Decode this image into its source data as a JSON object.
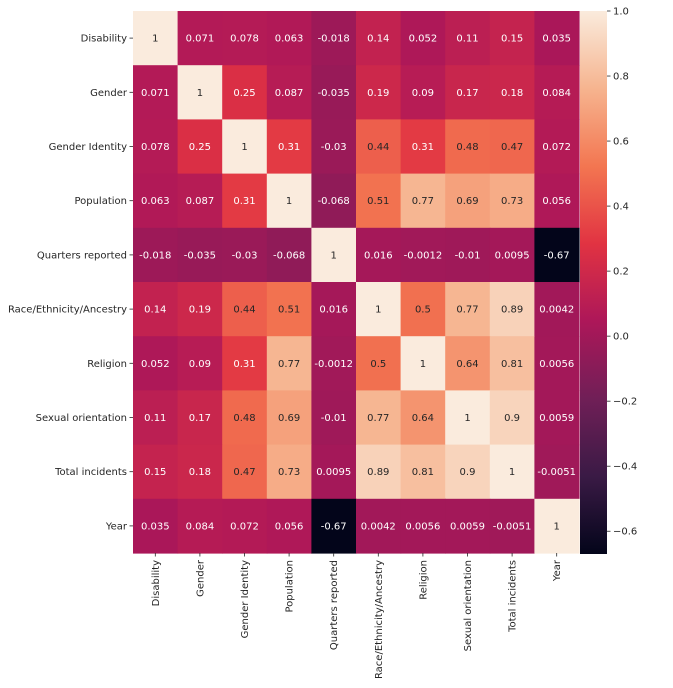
{
  "chart_data": {
    "type": "heatmap",
    "title": "",
    "xlabel": "",
    "ylabel": "",
    "labels": [
      "Disability",
      "Gender",
      "Gender Identity",
      "Population",
      "Quarters reported",
      "Race/Ethnicity/Ancestry",
      "Religion",
      "Sexual orientation",
      "Total incidents",
      "Year"
    ],
    "values": [
      [
        1,
        0.071,
        0.078,
        0.063,
        -0.018,
        0.14,
        0.052,
        0.11,
        0.15,
        0.035
      ],
      [
        0.071,
        1,
        0.25,
        0.087,
        -0.035,
        0.19,
        0.09,
        0.17,
        0.18,
        0.084
      ],
      [
        0.078,
        0.25,
        1,
        0.31,
        -0.03,
        0.44,
        0.31,
        0.48,
        0.47,
        0.072
      ],
      [
        0.063,
        0.087,
        0.31,
        1,
        -0.068,
        0.51,
        0.77,
        0.69,
        0.73,
        0.056
      ],
      [
        -0.018,
        -0.035,
        -0.03,
        -0.068,
        1,
        0.016,
        -0.0012,
        -0.01,
        0.0095,
        -0.67
      ],
      [
        0.14,
        0.19,
        0.44,
        0.51,
        0.016,
        1,
        0.5,
        0.77,
        0.89,
        0.0042
      ],
      [
        0.052,
        0.09,
        0.31,
        0.77,
        -0.0012,
        0.5,
        1,
        0.64,
        0.81,
        0.0056
      ],
      [
        0.11,
        0.17,
        0.48,
        0.69,
        -0.01,
        0.77,
        0.64,
        1,
        0.9,
        0.0059
      ],
      [
        0.15,
        0.18,
        0.47,
        0.73,
        0.0095,
        0.89,
        0.81,
        0.9,
        1,
        -0.0051
      ],
      [
        0.035,
        0.084,
        0.072,
        0.056,
        -0.67,
        0.0042,
        0.0056,
        0.0059,
        -0.0051,
        1
      ]
    ],
    "cell_labels": [
      [
        "1",
        "0.071",
        "0.078",
        "0.063",
        "-0.018",
        "0.14",
        "0.052",
        "0.11",
        "0.15",
        "0.035"
      ],
      [
        "0.071",
        "1",
        "0.25",
        "0.087",
        "-0.035",
        "0.19",
        "0.09",
        "0.17",
        "0.18",
        "0.084"
      ],
      [
        "0.078",
        "0.25",
        "1",
        "0.31",
        "-0.03",
        "0.44",
        "0.31",
        "0.48",
        "0.47",
        "0.072"
      ],
      [
        "0.063",
        "0.087",
        "0.31",
        "1",
        "-0.068",
        "0.51",
        "0.77",
        "0.69",
        "0.73",
        "0.056"
      ],
      [
        "-0.018",
        "-0.035",
        "-0.03",
        "-0.068",
        "1",
        "0.016",
        "-0.0012",
        "-0.01",
        "0.0095",
        "-0.67"
      ],
      [
        "0.14",
        "0.19",
        "0.44",
        "0.51",
        "0.016",
        "1",
        "0.5",
        "0.77",
        "0.89",
        "0.0042"
      ],
      [
        "0.052",
        "0.09",
        "0.31",
        "0.77",
        "-0.0012",
        "0.5",
        "1",
        "0.64",
        "0.81",
        "0.0056"
      ],
      [
        "0.11",
        "0.17",
        "0.48",
        "0.69",
        "-0.01",
        "0.77",
        "0.64",
        "1",
        "0.9",
        "0.0059"
      ],
      [
        "0.15",
        "0.18",
        "0.47",
        "0.73",
        "0.0095",
        "0.89",
        "0.81",
        "0.9",
        "1",
        "-0.0051"
      ],
      [
        "0.035",
        "0.084",
        "0.072",
        "0.056",
        "-0.67",
        "0.0042",
        "0.0056",
        "0.0059",
        "-0.0051",
        "1"
      ]
    ],
    "color_scale": {
      "name": "rocket",
      "vmin": -0.67,
      "vmax": 1,
      "stops": [
        "#03051a",
        "#3a1a45",
        "#701f57",
        "#ad1759",
        "#e13342",
        "#f37651",
        "#f6b48f",
        "#faebdd"
      ],
      "ticks": [
        -0.6,
        -0.4,
        -0.2,
        0.0,
        0.2,
        0.4,
        0.6,
        0.8,
        1.0
      ],
      "tick_labels": [
        "−0.6",
        "−0.4",
        "−0.2",
        "0.0",
        "0.2",
        "0.4",
        "0.6",
        "0.8",
        "1.0"
      ]
    },
    "grid": false,
    "legend": "colorbar-right"
  }
}
